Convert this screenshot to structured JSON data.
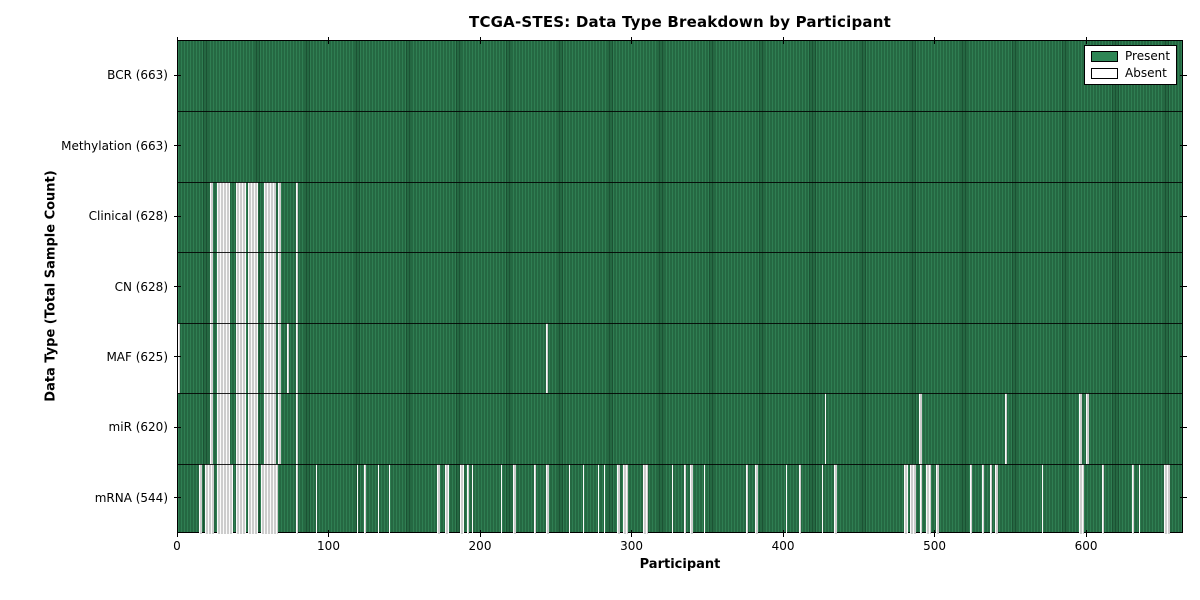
{
  "figure": {
    "title": "TCGA-STES: Data Type Breakdown by Participant",
    "xlabel": "Participant",
    "ylabel": "Data Type (Total Sample Count)"
  },
  "chart_data": {
    "type": "heatmap",
    "subtype": "presence-absence-matrix",
    "title": "TCGA-STES: Data Type Breakdown by Participant",
    "xlabel": "Participant",
    "ylabel": "Data Type (Total Sample Count)",
    "n_participants": 663,
    "xlim": [
      0,
      664
    ],
    "x_ticks": [
      0,
      100,
      200,
      300,
      400,
      500,
      600
    ],
    "grid": false,
    "legend_position": "upper right",
    "legend": [
      {
        "label": "Present",
        "swatch_color": "#2E8655"
      },
      {
        "label": "Absent",
        "swatch_color": "#FFFFFF"
      }
    ],
    "colors": {
      "present_fill": "#2F7E52",
      "present_edge": "#1B5233",
      "absent_fill": "#FBFBFB",
      "absent_edge": "#9F9F9F",
      "frame": "#000000"
    },
    "rows": [
      {
        "label": "BCR (663)",
        "data_type": "BCR",
        "present_count": 663,
        "absent_ranges": []
      },
      {
        "label": "Methylation (663)",
        "data_type": "Methylation",
        "present_count": 663,
        "absent_ranges": []
      },
      {
        "label": "Clinical (628)",
        "data_type": "Clinical",
        "present_count": 628,
        "absent_ranges": [
          [
            21,
            22
          ],
          [
            26,
            33
          ],
          [
            38,
            44
          ],
          [
            46,
            52
          ],
          [
            57,
            64
          ],
          [
            66,
            67
          ],
          [
            78,
            78
          ]
        ]
      },
      {
        "label": "CN (628)",
        "data_type": "CN",
        "present_count": 628,
        "absent_ranges": [
          [
            21,
            22
          ],
          [
            26,
            33
          ],
          [
            38,
            44
          ],
          [
            46,
            52
          ],
          [
            57,
            64
          ],
          [
            66,
            67
          ],
          [
            78,
            78
          ]
        ]
      },
      {
        "label": "MAF (625)",
        "data_type": "MAF",
        "present_count": 625,
        "absent_ranges": [
          [
            0,
            0
          ],
          [
            21,
            22
          ],
          [
            26,
            33
          ],
          [
            38,
            44
          ],
          [
            46,
            52
          ],
          [
            57,
            64
          ],
          [
            66,
            67
          ],
          [
            72,
            72
          ],
          [
            78,
            78
          ],
          [
            243,
            243
          ]
        ]
      },
      {
        "label": "miR (620)",
        "data_type": "miR",
        "present_count": 620,
        "absent_ranges": [
          [
            21,
            22
          ],
          [
            26,
            33
          ],
          [
            38,
            44
          ],
          [
            46,
            52
          ],
          [
            57,
            64
          ],
          [
            66,
            67
          ],
          [
            78,
            78
          ],
          [
            427,
            427
          ],
          [
            489,
            490
          ],
          [
            546,
            546
          ],
          [
            595,
            596
          ],
          [
            599,
            600
          ]
        ]
      },
      {
        "label": "mRNA (544)",
        "data_type": "mRNA",
        "present_count": 544,
        "absent_ranges": [
          [
            14,
            15
          ],
          [
            18,
            23
          ],
          [
            26,
            35
          ],
          [
            38,
            44
          ],
          [
            46,
            52
          ],
          [
            55,
            65
          ],
          [
            78,
            78
          ],
          [
            91,
            91
          ],
          [
            118,
            118
          ],
          [
            123,
            123
          ],
          [
            132,
            132
          ],
          [
            139,
            139
          ],
          [
            171,
            172
          ],
          [
            176,
            178
          ],
          [
            186,
            188
          ],
          [
            191,
            191
          ],
          [
            194,
            194
          ],
          [
            213,
            213
          ],
          [
            221,
            222
          ],
          [
            235,
            235
          ],
          [
            243,
            244
          ],
          [
            258,
            258
          ],
          [
            267,
            267
          ],
          [
            277,
            277
          ],
          [
            281,
            281
          ],
          [
            290,
            291
          ],
          [
            294,
            296
          ],
          [
            307,
            309
          ],
          [
            326,
            326
          ],
          [
            334,
            334
          ],
          [
            338,
            339
          ],
          [
            347,
            347
          ],
          [
            375,
            375
          ],
          [
            381,
            382
          ],
          [
            401,
            401
          ],
          [
            410,
            410
          ],
          [
            425,
            425
          ],
          [
            433,
            434
          ],
          [
            479,
            481
          ],
          [
            483,
            486
          ],
          [
            490,
            490
          ],
          [
            494,
            496
          ],
          [
            500,
            501
          ],
          [
            523,
            523
          ],
          [
            531,
            531
          ],
          [
            536,
            536
          ],
          [
            539,
            540
          ],
          [
            570,
            570
          ],
          [
            595,
            597
          ],
          [
            610,
            610
          ],
          [
            630,
            630
          ],
          [
            634,
            634
          ],
          [
            651,
            654
          ]
        ]
      }
    ]
  }
}
